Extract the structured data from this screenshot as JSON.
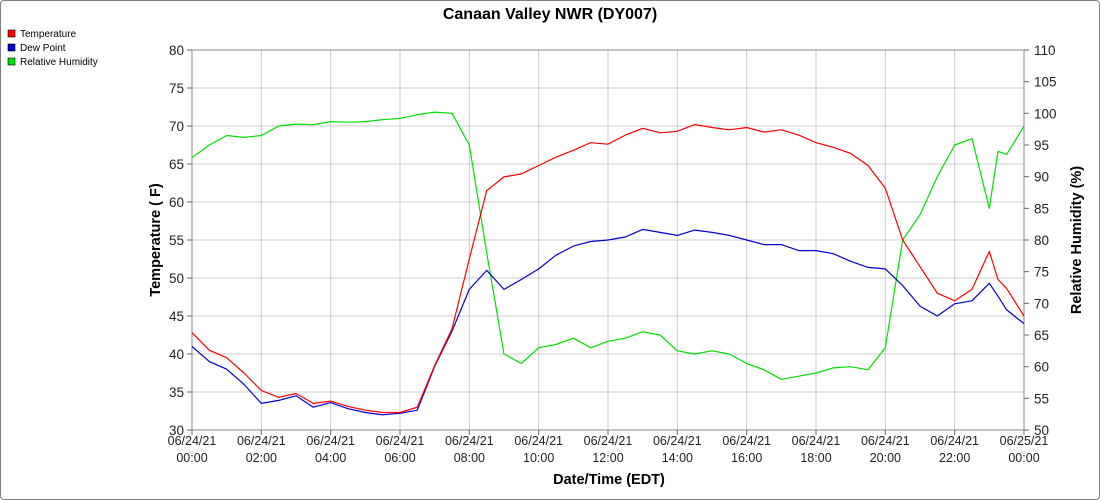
{
  "chart_data": {
    "type": "line",
    "title": "Canaan Valley NWR (DY007)",
    "xlabel": "Date/Time (EDT)",
    "ylabel": "Temperature ( F)",
    "y2label": "Relative Humidity (%)",
    "x_ticks": [
      [
        "06/24/21",
        "00:00"
      ],
      [
        "06/24/21",
        "02:00"
      ],
      [
        "06/24/21",
        "04:00"
      ],
      [
        "06/24/21",
        "06:00"
      ],
      [
        "06/24/21",
        "08:00"
      ],
      [
        "06/24/21",
        "10:00"
      ],
      [
        "06/24/21",
        "12:00"
      ],
      [
        "06/24/21",
        "14:00"
      ],
      [
        "06/24/21",
        "16:00"
      ],
      [
        "06/24/21",
        "18:00"
      ],
      [
        "06/24/21",
        "20:00"
      ],
      [
        "06/24/21",
        "22:00"
      ],
      [
        "06/25/21",
        "00:00"
      ]
    ],
    "xlim": [
      "2021-06-24 00:00",
      "2021-06-25 00:00"
    ],
    "ylim": [
      30,
      80
    ],
    "yticks": [
      30,
      35,
      40,
      45,
      50,
      55,
      60,
      65,
      70,
      75,
      80
    ],
    "y2lim": [
      50,
      110
    ],
    "y2ticks": [
      50,
      55,
      60,
      65,
      70,
      75,
      80,
      85,
      90,
      95,
      100,
      105,
      110
    ],
    "grid": true,
    "legend_position": "top-left",
    "x_hours": [
      0,
      0.5,
      1,
      1.5,
      2,
      2.5,
      3,
      3.5,
      4,
      4.5,
      5,
      5.5,
      6,
      6.5,
      7,
      7.5,
      8,
      8.5,
      9,
      9.5,
      10,
      10.5,
      11,
      11.5,
      12,
      12.5,
      13,
      13.5,
      14,
      14.5,
      15,
      15.5,
      16,
      16.5,
      17,
      17.5,
      18,
      18.5,
      19,
      19.5,
      20,
      20.5,
      21,
      21.5,
      22,
      22.5,
      23,
      23.25,
      23.5,
      24
    ],
    "series": [
      {
        "name": "Temperature",
        "axis": "left",
        "color": "#ff0000",
        "values": [
          42.8,
          40.5,
          39.5,
          37.5,
          35.2,
          34.3,
          34.8,
          33.5,
          33.8,
          33.1,
          32.6,
          32.3,
          32.3,
          33.0,
          38.5,
          43.3,
          52.5,
          61.5,
          63.3,
          63.7,
          64.8,
          65.9,
          66.8,
          67.8,
          67.6,
          68.8,
          69.7,
          69.1,
          69.3,
          70.2,
          69.8,
          69.5,
          69.8,
          69.2,
          69.5,
          68.8,
          67.8,
          67.2,
          66.4,
          64.8,
          61.8,
          55.0,
          51.5,
          48.0,
          47.0,
          48.5,
          53.5,
          49.8,
          48.6,
          45.0
        ]
      },
      {
        "name": "Dew Point",
        "axis": "left",
        "color": "#0000cc",
        "values": [
          41.0,
          39.0,
          38.0,
          36.0,
          33.5,
          33.9,
          34.5,
          33.0,
          33.6,
          32.8,
          32.3,
          32.0,
          32.2,
          32.6,
          38.4,
          43.0,
          48.5,
          51.0,
          48.5,
          49.8,
          51.2,
          53.0,
          54.2,
          54.8,
          55.0,
          55.4,
          56.4,
          56.0,
          55.6,
          56.3,
          56.0,
          55.6,
          55.0,
          54.4,
          54.4,
          53.6,
          53.6,
          53.2,
          52.2,
          51.4,
          51.2,
          49.0,
          46.3,
          45.0,
          46.6,
          47.0,
          49.3,
          47.6,
          45.8,
          44.0
        ]
      },
      {
        "name": "Relative Humidity",
        "axis": "right",
        "color": "#00e000",
        "values": [
          93.0,
          95.0,
          96.5,
          96.2,
          96.5,
          98.0,
          98.3,
          98.2,
          98.7,
          98.6,
          98.7,
          99.0,
          99.2,
          99.8,
          100.2,
          100.0,
          95.0,
          78.0,
          62.0,
          60.5,
          63.0,
          63.5,
          64.5,
          63.0,
          64.0,
          64.5,
          65.5,
          65.0,
          62.5,
          62.0,
          62.5,
          62.0,
          60.5,
          59.5,
          58.0,
          58.5,
          59.0,
          59.8,
          60.0,
          59.5,
          63.0,
          80.0,
          84.0,
          90.0,
          95.0,
          96.0,
          85.0,
          94.0,
          93.5,
          98.0
        ]
      }
    ]
  }
}
